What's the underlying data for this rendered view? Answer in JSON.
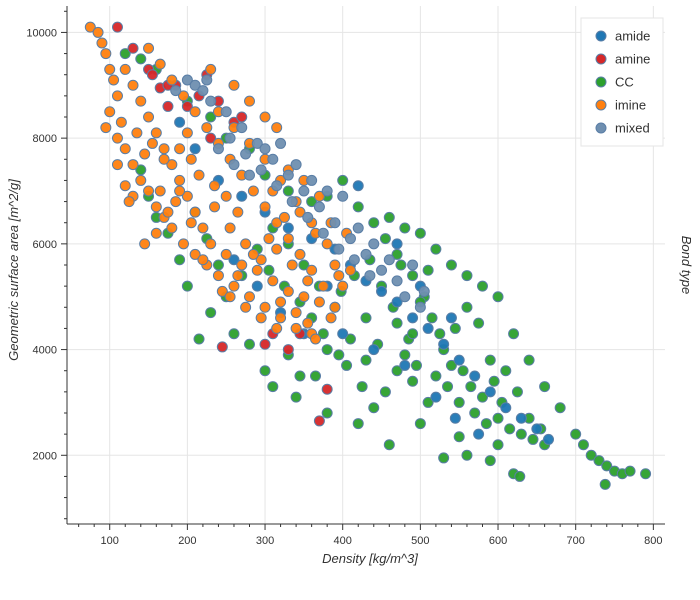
{
  "chart_data": {
    "type": "scatter",
    "xlabel": "Density [kg/m^3]",
    "ylabel": "Geometric surface area [m^2/g]",
    "legend_title": "Bond type",
    "legend_position": "top-right",
    "grid": true,
    "xlim": [
      45,
      815
    ],
    "ylim": [
      700,
      10500
    ],
    "x_ticks": [
      100,
      200,
      300,
      400,
      500,
      600,
      700,
      800
    ],
    "y_ticks": [
      2000,
      4000,
      6000,
      8000,
      10000
    ],
    "series": [
      {
        "name": "amide",
        "color": "#1f77b4"
      },
      {
        "name": "amine",
        "color": "#d62728"
      },
      {
        "name": "CC",
        "color": "#2ca02c"
      },
      {
        "name": "imine",
        "color": "#ff7f0e"
      },
      {
        "name": "mixed",
        "color": "#6f8fb0"
      }
    ],
    "points": {
      "CC": [
        [
          120,
          9600
        ],
        [
          140,
          9500
        ],
        [
          160,
          9300
        ],
        [
          200,
          8700
        ],
        [
          230,
          8400
        ],
        [
          250,
          8000
        ],
        [
          280,
          7800
        ],
        [
          300,
          7300
        ],
        [
          330,
          7000
        ],
        [
          360,
          6800
        ],
        [
          380,
          6900
        ],
        [
          400,
          7200
        ],
        [
          420,
          6700
        ],
        [
          440,
          6400
        ],
        [
          460,
          6500
        ],
        [
          480,
          6300
        ],
        [
          500,
          6200
        ],
        [
          520,
          5900
        ],
        [
          540,
          5600
        ],
        [
          560,
          5400
        ],
        [
          580,
          5200
        ],
        [
          600,
          5000
        ],
        [
          620,
          4300
        ],
        [
          640,
          3800
        ],
        [
          660,
          3300
        ],
        [
          680,
          2900
        ],
        [
          700,
          2400
        ],
        [
          710,
          2200
        ],
        [
          720,
          2000
        ],
        [
          730,
          1900
        ],
        [
          740,
          1800
        ],
        [
          750,
          1700
        ],
        [
          760,
          1650
        ],
        [
          770,
          1700
        ],
        [
          790,
          1650
        ],
        [
          738,
          1450
        ],
        [
          530,
          1950
        ],
        [
          560,
          2000
        ],
        [
          590,
          1900
        ],
        [
          620,
          1650
        ],
        [
          628,
          1600
        ],
        [
          600,
          2200
        ],
        [
          550,
          2350
        ],
        [
          500,
          2600
        ],
        [
          460,
          2200
        ],
        [
          420,
          2600
        ],
        [
          380,
          2800
        ],
        [
          340,
          3100
        ],
        [
          310,
          3300
        ],
        [
          300,
          3600
        ],
        [
          280,
          4100
        ],
        [
          260,
          4300
        ],
        [
          230,
          4700
        ],
        [
          215,
          4200
        ],
        [
          200,
          5200
        ],
        [
          190,
          5700
        ],
        [
          175,
          6200
        ],
        [
          160,
          6500
        ],
        [
          150,
          6900
        ],
        [
          140,
          7400
        ],
        [
          470,
          4500
        ],
        [
          480,
          3900
        ],
        [
          490,
          3400
        ],
        [
          510,
          3000
        ],
        [
          520,
          3500
        ],
        [
          530,
          4000
        ],
        [
          545,
          4400
        ],
        [
          560,
          4800
        ],
        [
          575,
          4500
        ],
        [
          590,
          3800
        ],
        [
          610,
          3600
        ],
        [
          625,
          3200
        ],
        [
          640,
          2700
        ],
        [
          655,
          2500
        ],
        [
          430,
          3800
        ],
        [
          410,
          4200
        ],
        [
          390,
          4800
        ],
        [
          370,
          5200
        ],
        [
          350,
          5600
        ],
        [
          330,
          6000
        ],
        [
          310,
          6300
        ],
        [
          290,
          5900
        ],
        [
          270,
          5400
        ],
        [
          250,
          5000
        ],
        [
          240,
          5600
        ],
        [
          225,
          6100
        ],
        [
          210,
          6600
        ],
        [
          450,
          5200
        ],
        [
          470,
          5800
        ],
        [
          490,
          5400
        ],
        [
          505,
          5000
        ],
        [
          515,
          4600
        ],
        [
          535,
          3300
        ],
        [
          550,
          3000
        ],
        [
          570,
          2800
        ],
        [
          585,
          2600
        ],
        [
          600,
          2700
        ],
        [
          615,
          2500
        ],
        [
          630,
          2400
        ],
        [
          645,
          2300
        ],
        [
          660,
          2200
        ],
        [
          485,
          4200
        ],
        [
          455,
          3200
        ],
        [
          440,
          2900
        ],
        [
          425,
          3300
        ],
        [
          405,
          3700
        ],
        [
          395,
          3900
        ],
        [
          375,
          4300
        ],
        [
          360,
          4600
        ],
        [
          345,
          4900
        ],
        [
          325,
          5200
        ],
        [
          305,
          5500
        ],
        [
          465,
          4800
        ],
        [
          495,
          3700
        ],
        [
          525,
          4300
        ],
        [
          540,
          3700
        ],
        [
          555,
          3600
        ],
        [
          565,
          3300
        ],
        [
          580,
          3100
        ],
        [
          595,
          3400
        ],
        [
          605,
          3000
        ],
        [
          475,
          5600
        ],
        [
          455,
          6100
        ],
        [
          435,
          5700
        ],
        [
          415,
          5400
        ],
        [
          398,
          5100
        ],
        [
          380,
          4000
        ],
        [
          365,
          3500
        ],
        [
          345,
          3500
        ],
        [
          330,
          3900
        ],
        [
          510,
          5500
        ],
        [
          500,
          4900
        ],
        [
          490,
          4300
        ],
        [
          470,
          3600
        ],
        [
          445,
          4100
        ],
        [
          430,
          4600
        ]
      ],
      "amide": [
        [
          190,
          8300
        ],
        [
          210,
          7800
        ],
        [
          240,
          7200
        ],
        [
          270,
          6900
        ],
        [
          300,
          6600
        ],
        [
          330,
          6300
        ],
        [
          360,
          6100
        ],
        [
          390,
          5900
        ],
        [
          410,
          5600
        ],
        [
          430,
          5300
        ],
        [
          450,
          5100
        ],
        [
          470,
          4900
        ],
        [
          490,
          4600
        ],
        [
          510,
          4400
        ],
        [
          530,
          4100
        ],
        [
          550,
          3800
        ],
        [
          570,
          3500
        ],
        [
          590,
          3200
        ],
        [
          610,
          2900
        ],
        [
          630,
          2700
        ],
        [
          650,
          2500
        ],
        [
          665,
          2300
        ],
        [
          420,
          7100
        ],
        [
          380,
          5200
        ],
        [
          350,
          4300
        ],
        [
          320,
          4700
        ],
        [
          290,
          5200
        ],
        [
          260,
          5700
        ],
        [
          400,
          4300
        ],
        [
          440,
          4000
        ],
        [
          480,
          3700
        ],
        [
          520,
          3100
        ],
        [
          545,
          2700
        ],
        [
          575,
          2400
        ],
        [
          470,
          6000
        ],
        [
          500,
          5200
        ],
        [
          540,
          4600
        ]
      ],
      "amine": [
        [
          110,
          10100
        ],
        [
          130,
          9700
        ],
        [
          150,
          9300
        ],
        [
          165,
          8950
        ],
        [
          175,
          8600
        ],
        [
          185,
          9000
        ],
        [
          200,
          8600
        ],
        [
          215,
          8800
        ],
        [
          225,
          9200
        ],
        [
          240,
          8700
        ],
        [
          260,
          8300
        ],
        [
          270,
          8400
        ],
        [
          245,
          4050
        ],
        [
          370,
          2650
        ],
        [
          380,
          3250
        ],
        [
          310,
          4300
        ],
        [
          330,
          4000
        ],
        [
          300,
          4100
        ],
        [
          345,
          4300
        ],
        [
          230,
          8000
        ],
        [
          175,
          9000
        ],
        [
          155,
          9200
        ]
      ],
      "imine": [
        [
          75,
          10100
        ],
        [
          85,
          10000
        ],
        [
          90,
          9800
        ],
        [
          95,
          9600
        ],
        [
          100,
          9300
        ],
        [
          105,
          9100
        ],
        [
          110,
          8800
        ],
        [
          100,
          8500
        ],
        [
          95,
          8200
        ],
        [
          110,
          8000
        ],
        [
          120,
          7800
        ],
        [
          130,
          7500
        ],
        [
          140,
          7200
        ],
        [
          150,
          7000
        ],
        [
          160,
          6700
        ],
        [
          170,
          6500
        ],
        [
          180,
          6300
        ],
        [
          195,
          6000
        ],
        [
          210,
          5800
        ],
        [
          225,
          5600
        ],
        [
          240,
          5400
        ],
        [
          260,
          5200
        ],
        [
          280,
          5000
        ],
        [
          300,
          4800
        ],
        [
          320,
          4600
        ],
        [
          340,
          4400
        ],
        [
          360,
          4300
        ],
        [
          120,
          9300
        ],
        [
          130,
          9000
        ],
        [
          140,
          8700
        ],
        [
          150,
          8400
        ],
        [
          160,
          8100
        ],
        [
          170,
          7800
        ],
        [
          180,
          7500
        ],
        [
          190,
          7200
        ],
        [
          200,
          6900
        ],
        [
          210,
          6600
        ],
        [
          220,
          6300
        ],
        [
          230,
          6000
        ],
        [
          250,
          5800
        ],
        [
          270,
          5600
        ],
        [
          290,
          5500
        ],
        [
          310,
          5300
        ],
        [
          330,
          5100
        ],
        [
          350,
          5000
        ],
        [
          370,
          4900
        ],
        [
          390,
          4800
        ],
        [
          400,
          5200
        ],
        [
          410,
          5500
        ],
        [
          380,
          6000
        ],
        [
          360,
          6400
        ],
        [
          340,
          6800
        ],
        [
          320,
          7200
        ],
        [
          300,
          7600
        ],
        [
          280,
          7900
        ],
        [
          260,
          8200
        ],
        [
          240,
          8500
        ],
        [
          230,
          9300
        ],
        [
          150,
          9700
        ],
        [
          165,
          9400
        ],
        [
          180,
          9100
        ],
        [
          195,
          8800
        ],
        [
          210,
          8500
        ],
        [
          225,
          8200
        ],
        [
          240,
          7900
        ],
        [
          255,
          7600
        ],
        [
          270,
          7300
        ],
        [
          285,
          7000
        ],
        [
          300,
          6700
        ],
        [
          315,
          6400
        ],
        [
          330,
          6100
        ],
        [
          345,
          5800
        ],
        [
          360,
          5500
        ],
        [
          375,
          5200
        ],
        [
          390,
          5600
        ],
        [
          205,
          7600
        ],
        [
          190,
          7000
        ],
        [
          175,
          6600
        ],
        [
          160,
          6200
        ],
        [
          145,
          6000
        ],
        [
          130,
          6900
        ],
        [
          125,
          6800
        ],
        [
          145,
          7700
        ],
        [
          165,
          7000
        ],
        [
          185,
          6800
        ],
        [
          205,
          6400
        ],
        [
          220,
          5700
        ],
        [
          235,
          6700
        ],
        [
          255,
          6300
        ],
        [
          275,
          6000
        ],
        [
          295,
          5700
        ],
        [
          315,
          5900
        ],
        [
          335,
          5600
        ],
        [
          355,
          5300
        ],
        [
          260,
          9000
        ],
        [
          280,
          8700
        ],
        [
          300,
          8400
        ],
        [
          315,
          8200
        ],
        [
          200,
          8100
        ],
        [
          190,
          7800
        ],
        [
          215,
          7300
        ],
        [
          235,
          7100
        ],
        [
          250,
          6900
        ],
        [
          265,
          6600
        ],
        [
          310,
          7000
        ],
        [
          330,
          7400
        ],
        [
          350,
          7200
        ],
        [
          370,
          6900
        ],
        [
          340,
          4700
        ],
        [
          355,
          4500
        ],
        [
          320,
          4900
        ],
        [
          365,
          4200
        ],
        [
          385,
          4600
        ],
        [
          115,
          8300
        ],
        [
          135,
          8100
        ],
        [
          155,
          7900
        ],
        [
          170,
          7600
        ],
        [
          110,
          7500
        ],
        [
          120,
          7100
        ],
        [
          245,
          5100
        ],
        [
          265,
          5400
        ],
        [
          285,
          5800
        ],
        [
          305,
          6100
        ],
        [
          325,
          6500
        ],
        [
          345,
          6600
        ],
        [
          365,
          6200
        ],
        [
          385,
          6400
        ],
        [
          405,
          6200
        ],
        [
          395,
          5400
        ],
        [
          315,
          4400
        ],
        [
          295,
          4600
        ],
        [
          275,
          4800
        ],
        [
          255,
          5000
        ]
      ],
      "mixed": [
        [
          200,
          9100
        ],
        [
          210,
          9000
        ],
        [
          230,
          8700
        ],
        [
          250,
          8500
        ],
        [
          270,
          8200
        ],
        [
          290,
          7900
        ],
        [
          310,
          7600
        ],
        [
          330,
          7300
        ],
        [
          350,
          7000
        ],
        [
          370,
          6700
        ],
        [
          390,
          6400
        ],
        [
          410,
          6100
        ],
        [
          430,
          5800
        ],
        [
          450,
          5500
        ],
        [
          470,
          5300
        ],
        [
          480,
          5000
        ],
        [
          240,
          7800
        ],
        [
          260,
          7500
        ],
        [
          280,
          7300
        ],
        [
          300,
          7800
        ],
        [
          320,
          7900
        ],
        [
          340,
          7500
        ],
        [
          360,
          7200
        ],
        [
          380,
          7000
        ],
        [
          400,
          6900
        ],
        [
          420,
          6300
        ],
        [
          440,
          6000
        ],
        [
          460,
          5700
        ],
        [
          490,
          5600
        ],
        [
          500,
          4800
        ],
        [
          505,
          5100
        ],
        [
          255,
          8000
        ],
        [
          275,
          7700
        ],
        [
          295,
          7400
        ],
        [
          315,
          7100
        ],
        [
          335,
          6800
        ],
        [
          355,
          6500
        ],
        [
          375,
          6200
        ],
        [
          395,
          5900
        ],
        [
          415,
          5700
        ],
        [
          435,
          5400
        ],
        [
          220,
          8900
        ],
        [
          225,
          9100
        ],
        [
          185,
          8900
        ]
      ]
    }
  }
}
